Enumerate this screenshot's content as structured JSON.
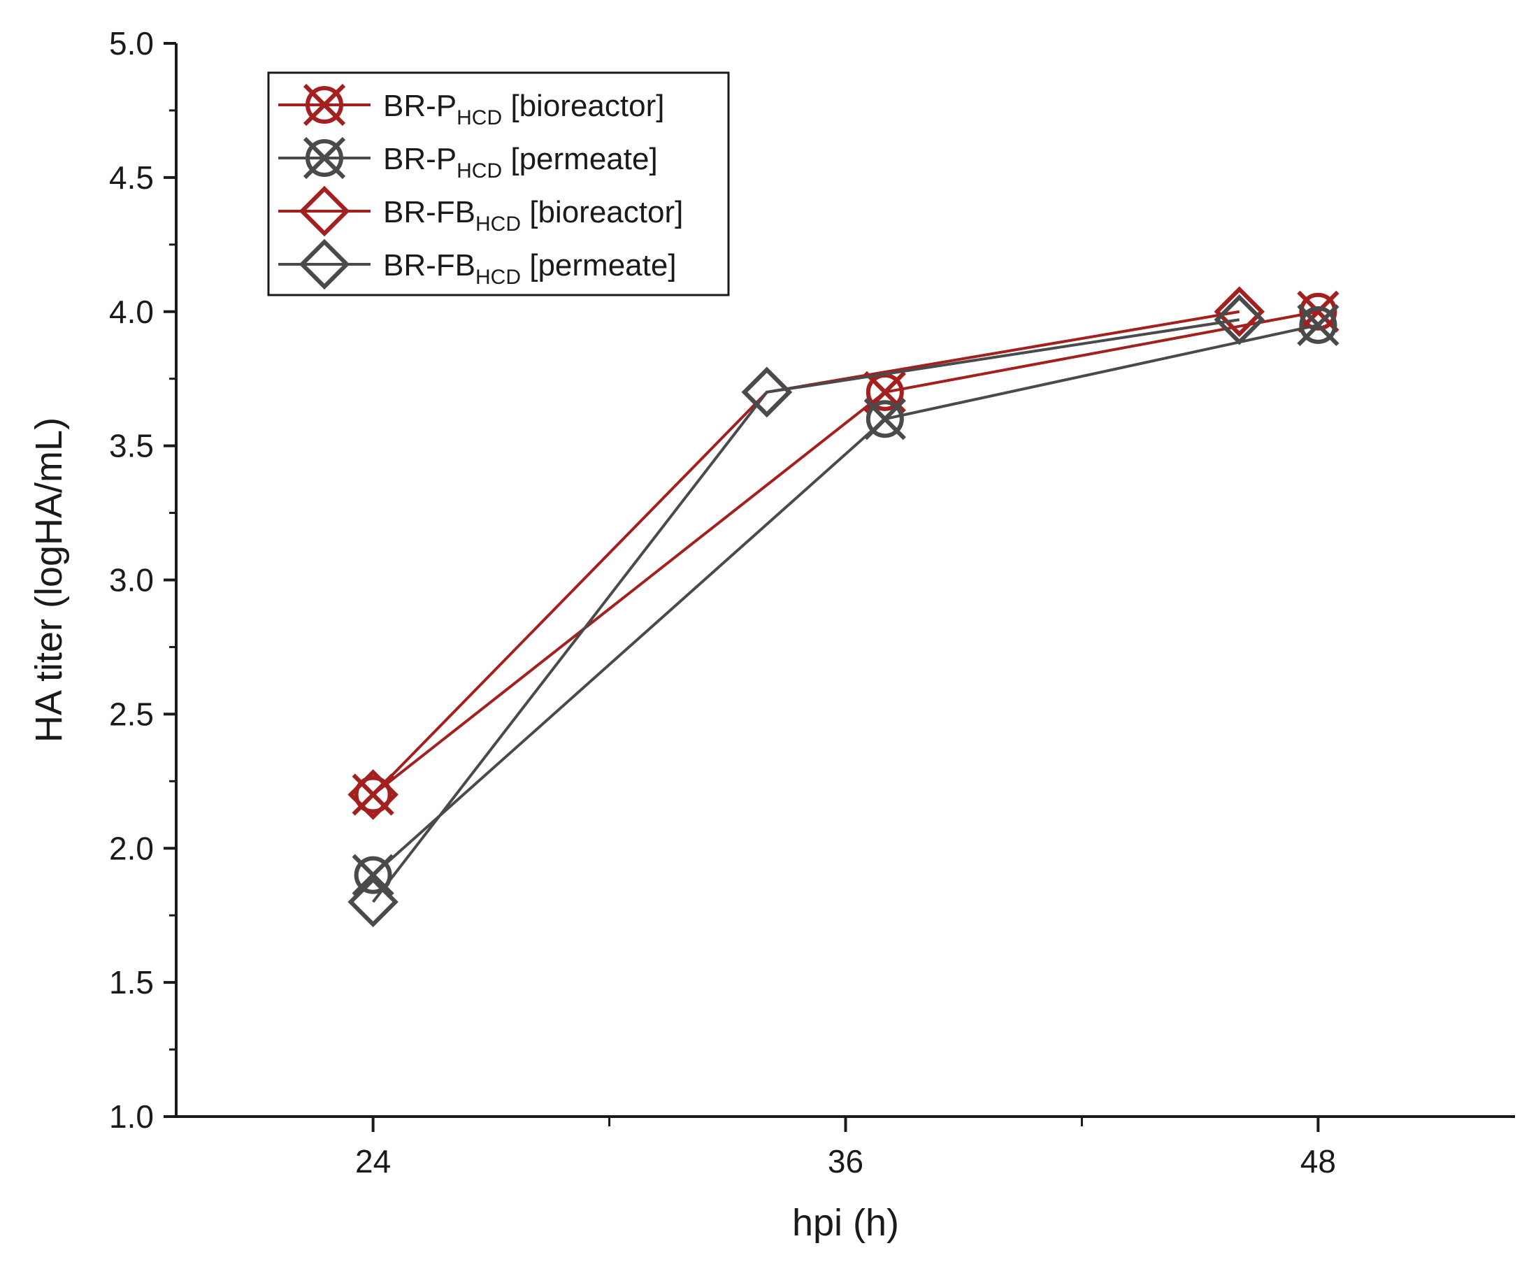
{
  "chart_data": {
    "type": "line",
    "title": "",
    "xlabel": "hpi (h)",
    "ylabel": "HA titer (logHA/mL)",
    "xlim": [
      19,
      53
    ],
    "ylim": [
      1.0,
      5.0
    ],
    "x_ticks": [
      24,
      36,
      48
    ],
    "x_tick_labels": [
      "24",
      "36",
      "48"
    ],
    "x_minor_ticks": [
      30,
      42
    ],
    "y_ticks": [
      1.0,
      1.5,
      2.0,
      2.5,
      3.0,
      3.5,
      4.0,
      4.5,
      5.0
    ],
    "y_tick_labels": [
      "1.0",
      "1.5",
      "2.0",
      "2.5",
      "3.0",
      "3.5",
      "4.0",
      "4.5",
      "5.0"
    ],
    "grid": false,
    "legend_position": "top-left",
    "series": [
      {
        "name": "BR-PHCD [bioreactor]",
        "label_main": "BR-P",
        "label_sub": "HCD",
        "label_tail": " [bioreactor]",
        "color": "#a3201f",
        "marker": "circle-x",
        "x": [
          24,
          37,
          48
        ],
        "y": [
          2.2,
          3.7,
          4.0
        ]
      },
      {
        "name": "BR-PHCD [permeate]",
        "label_main": "BR-P",
        "label_sub": "HCD",
        "label_tail": " [permeate]",
        "color": "#4a4a4a",
        "marker": "circle-x",
        "x": [
          24,
          37,
          48
        ],
        "y": [
          1.9,
          3.6,
          3.95
        ]
      },
      {
        "name": "BR-FBHCD [bioreactor]",
        "label_main": "BR-FB",
        "label_sub": "HCD",
        "label_tail": " [bioreactor]",
        "color": "#a3201f",
        "marker": "diamond",
        "x": [
          24,
          34,
          46
        ],
        "y": [
          2.2,
          3.7,
          4.0
        ]
      },
      {
        "name": "BR-FBHCD [permeate]",
        "label_main": "BR-FB",
        "label_sub": "HCD",
        "label_tail": " [permeate]",
        "color": "#4a4a4a",
        "marker": "diamond",
        "x": [
          24,
          34,
          46
        ],
        "y": [
          1.8,
          3.7,
          3.97
        ]
      }
    ]
  }
}
